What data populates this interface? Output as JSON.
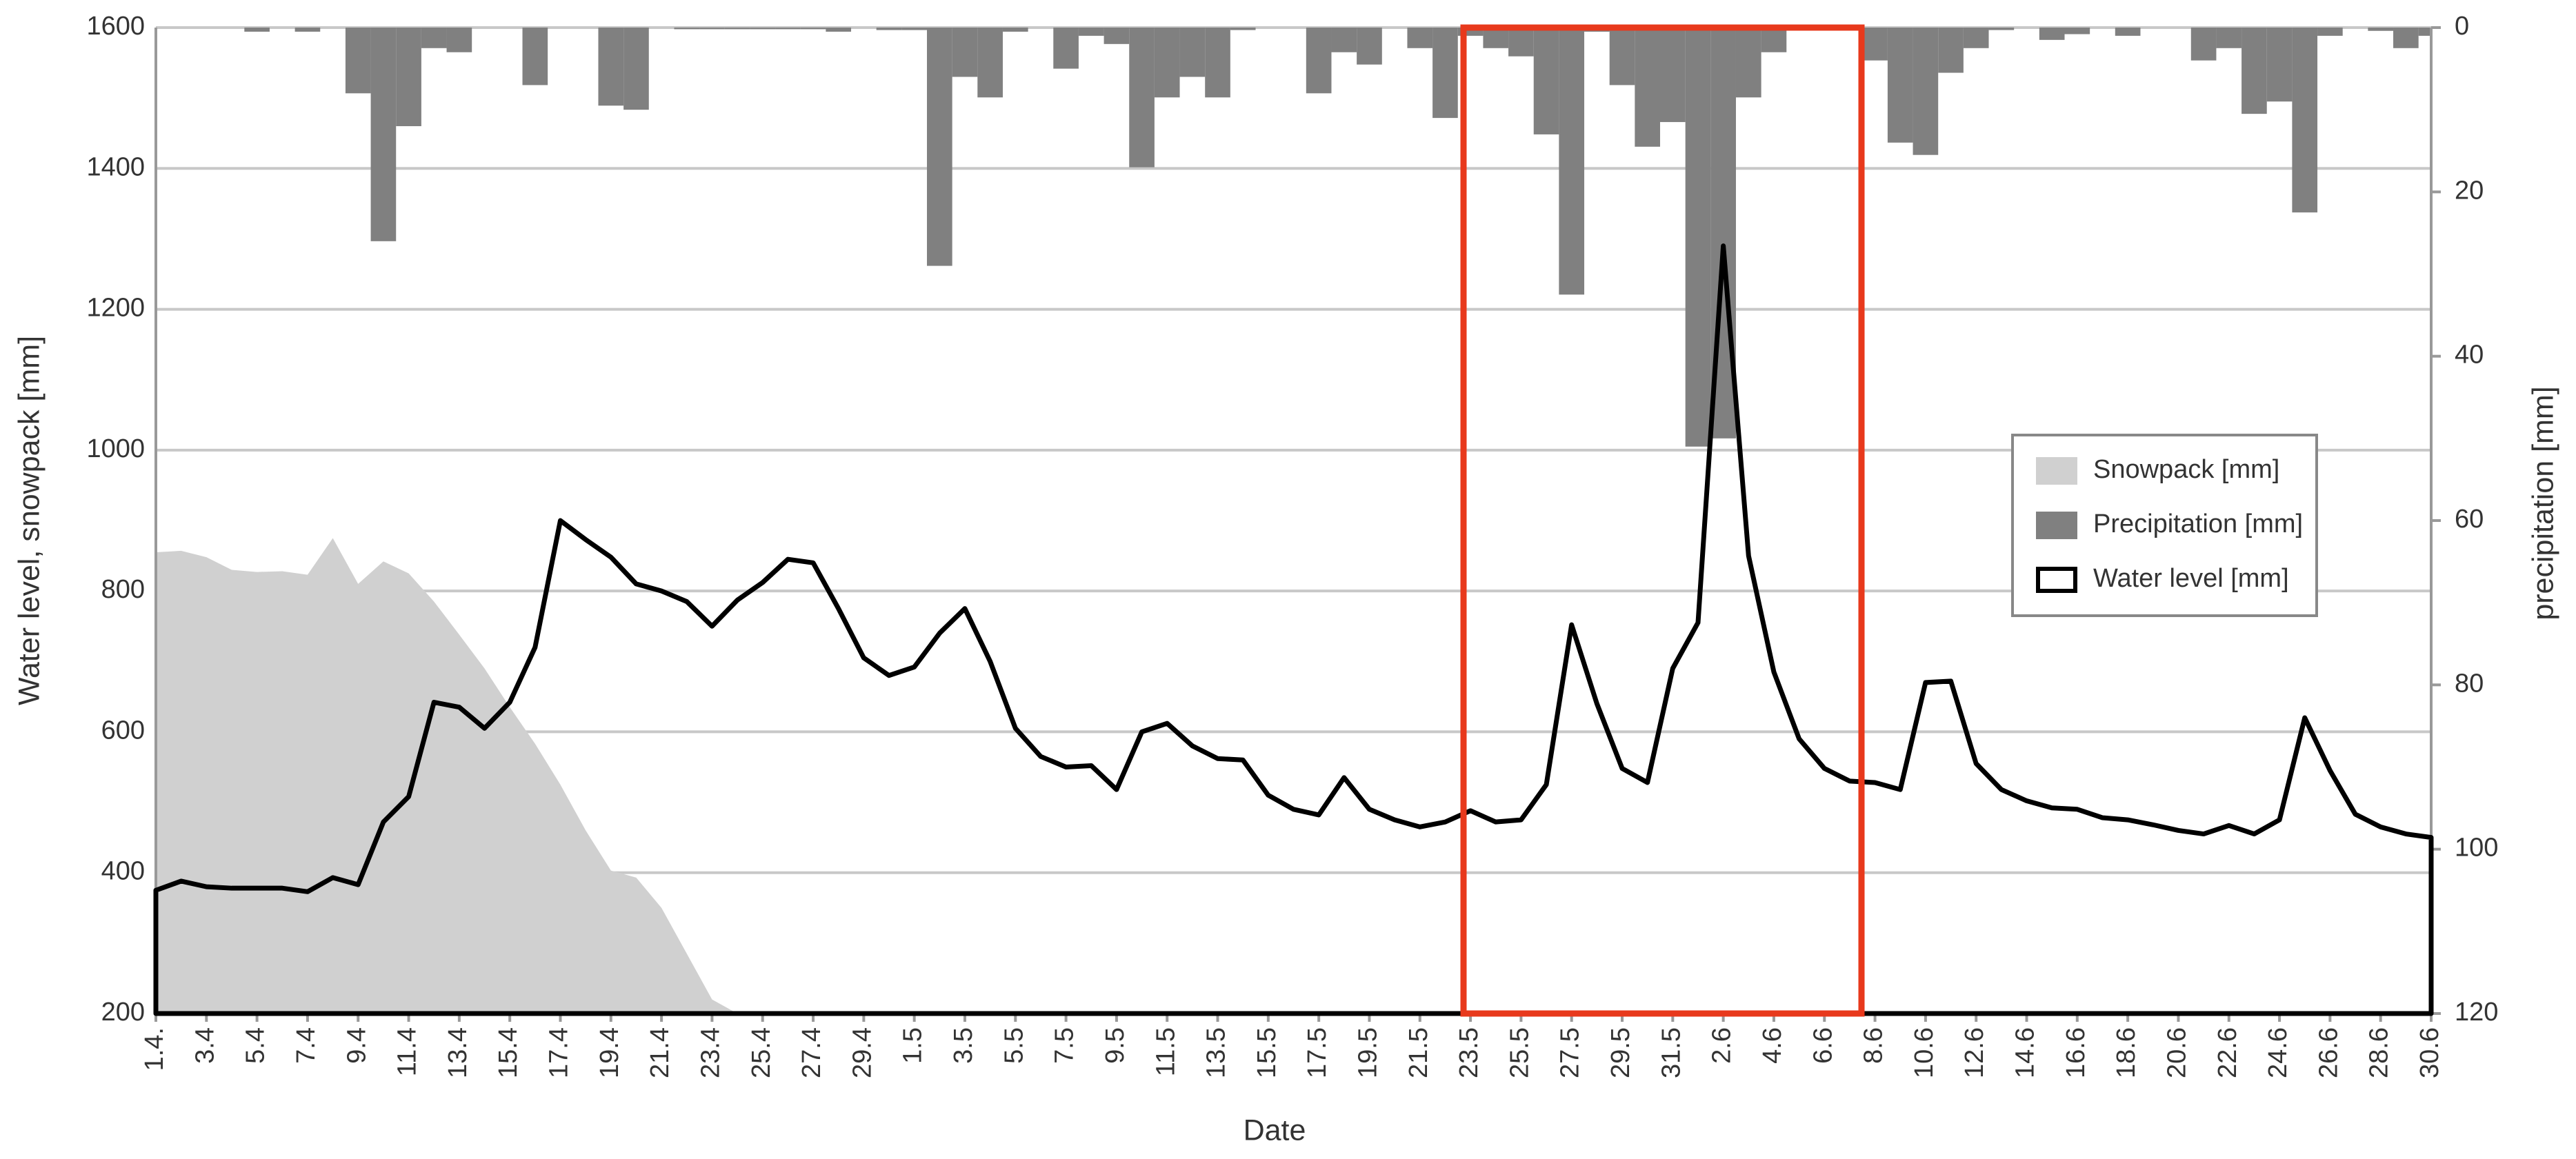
{
  "chart_data": {
    "type": "combo",
    "x_label": "Date",
    "y_label": "Water level, snowpack  [mm]",
    "y2_label": "precipitation [mm]",
    "categories": [
      "1.4.",
      null,
      "3.4",
      null,
      "5.4",
      null,
      "7.4",
      null,
      "9.4",
      null,
      "11.4",
      null,
      "13.4",
      null,
      "15.4",
      null,
      "17.4",
      null,
      "19.4",
      null,
      "21.4",
      null,
      "23.4",
      null,
      "25.4",
      null,
      "27.4",
      null,
      "29.4",
      null,
      "1.5",
      null,
      "3.5",
      null,
      "5.5",
      null,
      "7.5",
      null,
      "9.5",
      null,
      "11.5",
      null,
      "13.5",
      null,
      "15.5",
      null,
      "17.5",
      null,
      "19.5",
      null,
      "21.5",
      null,
      "23.5",
      null,
      "25.5",
      null,
      "27.5",
      null,
      "29.5",
      null,
      "31.5",
      null,
      "2.6",
      null,
      "4.6",
      null,
      "6.6",
      null,
      "8.6",
      null,
      "10.6",
      null,
      "12.6",
      null,
      "14.6",
      null,
      "16.6",
      null,
      "18.6",
      null,
      "20.6",
      null,
      "22.6",
      null,
      "24.6",
      null,
      "26.6",
      null,
      "28.6",
      null,
      "30.6"
    ],
    "series": [
      {
        "name": "Snowpack [mm]",
        "type": "area",
        "color": "#d0d0d0",
        "values": [
          855,
          857,
          848,
          830,
          827,
          828,
          823,
          875,
          810,
          842,
          825,
          785,
          738,
          690,
          635,
          583,
          525,
          460,
          403,
          393,
          350,
          285,
          220,
          200,
          0,
          0,
          0,
          0,
          0,
          0,
          0,
          0,
          0,
          0,
          0,
          0,
          0,
          0,
          0,
          0,
          0,
          0,
          0,
          0,
          0,
          0,
          0,
          0,
          0,
          0,
          0,
          0,
          0,
          0,
          0,
          0,
          0,
          0,
          0,
          0,
          0,
          0,
          0,
          0,
          0,
          0,
          0,
          0,
          0,
          0,
          0,
          0,
          0,
          0,
          0,
          0,
          0,
          0,
          0,
          0,
          0,
          0,
          0,
          0,
          0,
          0,
          0,
          0,
          0,
          0,
          0
        ]
      },
      {
        "name": "Precipitation [mm]",
        "type": "bar",
        "axis": "y2",
        "color": "#808080",
        "values": [
          0,
          0,
          0,
          0,
          0.5,
          0,
          0.5,
          0,
          8,
          26,
          12,
          2.5,
          3,
          0,
          0,
          7,
          0,
          0,
          9.5,
          10,
          0,
          0.2,
          0.2,
          0.2,
          0.2,
          0.2,
          0.2,
          0.5,
          0,
          0.3,
          0.3,
          29,
          6,
          8.5,
          0.5,
          0,
          5,
          1,
          2,
          17,
          8.5,
          6,
          8.5,
          0.3,
          0,
          0,
          8,
          3,
          4.5,
          0,
          2.5,
          11,
          1,
          2.5,
          3.5,
          13,
          32.5,
          0.5,
          7,
          14.5,
          11.5,
          51,
          50,
          8.5,
          3,
          0,
          0,
          0,
          4,
          14,
          15.5,
          5.5,
          2.5,
          0.3,
          0,
          1.5,
          0.8,
          0,
          1,
          0,
          0,
          4,
          2.5,
          10.5,
          9,
          22.5,
          1,
          0,
          0.4,
          2.5,
          1
        ]
      },
      {
        "name": "Water level [mm]",
        "type": "line",
        "color": "#000000",
        "values": [
          375,
          388,
          380,
          378,
          378,
          378,
          373,
          393,
          383,
          472,
          508,
          642,
          635,
          605,
          642,
          720,
          900,
          873,
          848,
          810,
          800,
          785,
          750,
          787,
          812,
          845,
          840,
          775,
          705,
          680,
          692,
          740,
          775,
          700,
          605,
          565,
          550,
          552,
          518,
          600,
          612,
          580,
          562,
          560,
          510,
          490,
          482,
          535,
          490,
          475,
          465,
          472,
          488,
          472,
          475,
          525,
          752,
          640,
          548,
          528,
          690,
          755,
          1290,
          850,
          685,
          590,
          548,
          530,
          528,
          518,
          670,
          672,
          555,
          518,
          502,
          492,
          490,
          478,
          475,
          468,
          460,
          455,
          467,
          455,
          475,
          620,
          545,
          483,
          465,
          455,
          450
        ]
      }
    ],
    "ylim": [
      200,
      1600
    ],
    "yticks": [
      200,
      400,
      600,
      800,
      1000,
      1200,
      1400,
      1600
    ],
    "y2lim": [
      0,
      120
    ],
    "y2ticks": [
      0,
      20,
      40,
      60,
      80,
      100,
      120
    ],
    "y2_inverted": true,
    "grid": true,
    "legend": "center right"
  }
}
